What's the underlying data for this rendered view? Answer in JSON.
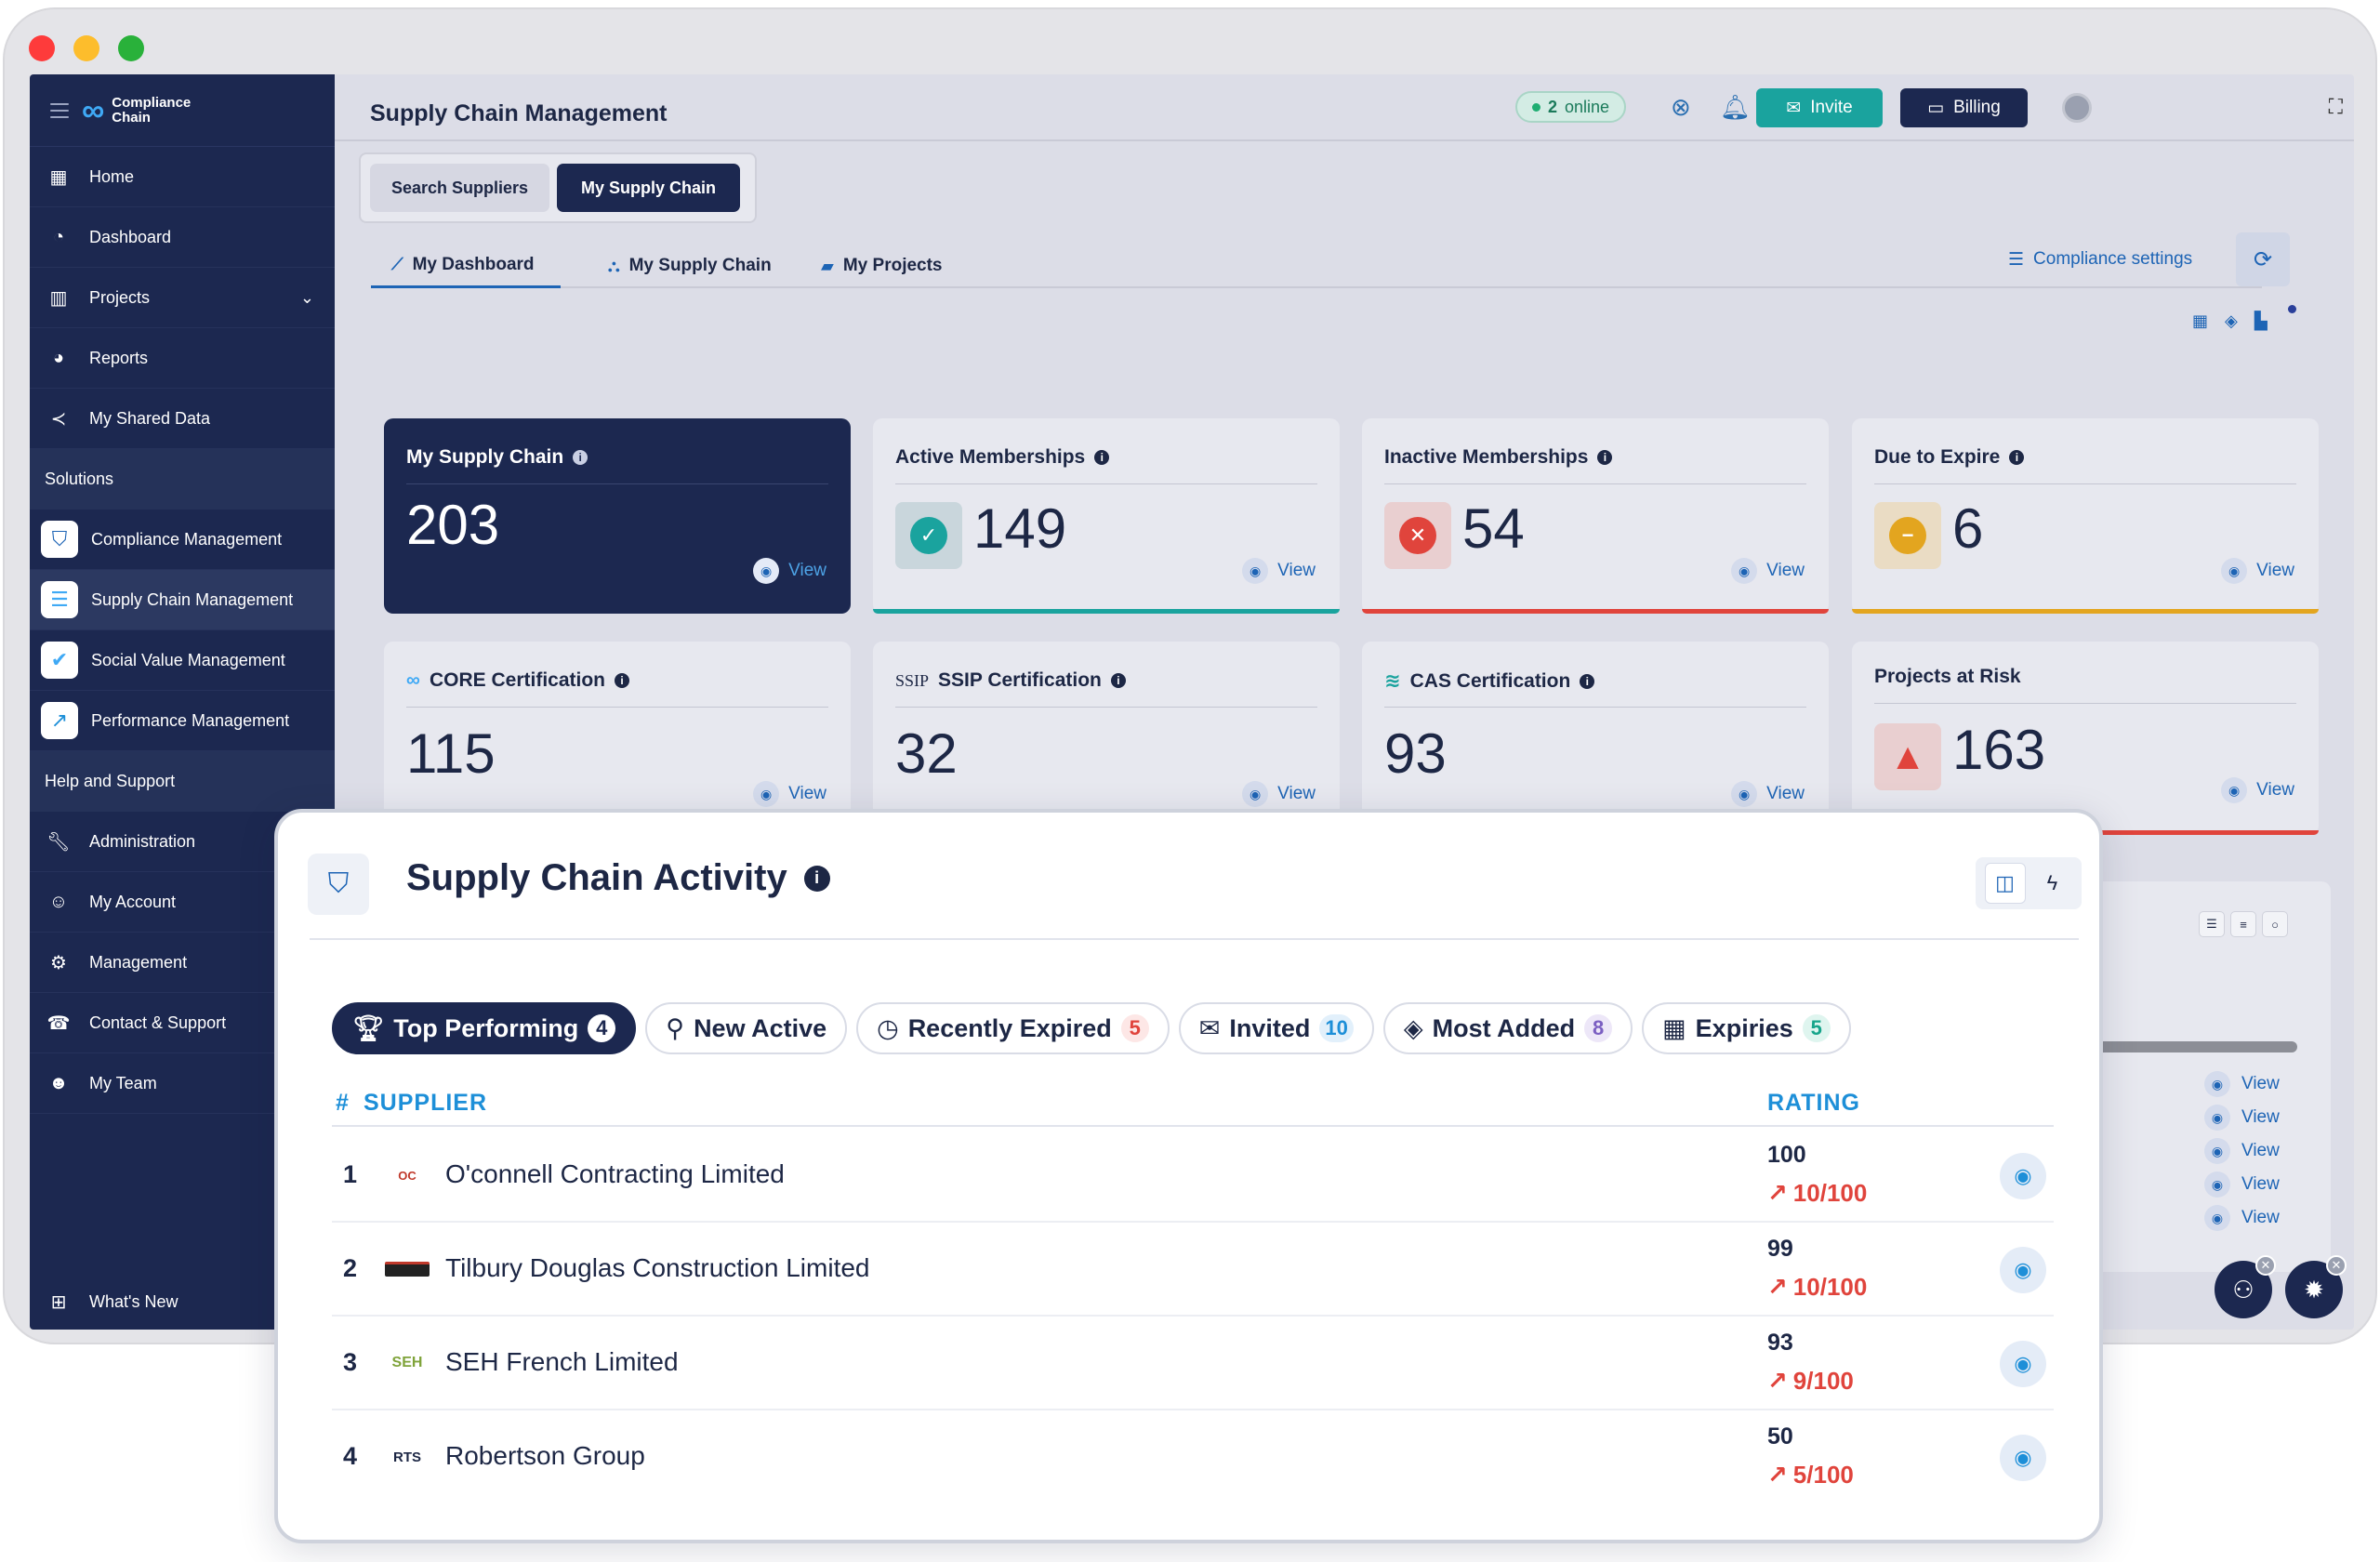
{
  "app": {
    "logo_line1": "Compliance",
    "logo_line2": "Chain"
  },
  "sidebar": {
    "items": [
      {
        "label": "Home",
        "icon": "grid-icon"
      },
      {
        "label": "Dashboard",
        "icon": "gauge-icon"
      },
      {
        "label": "Projects",
        "icon": "building-icon"
      },
      {
        "label": "Reports",
        "icon": "pie-chart-icon"
      },
      {
        "label": "My Shared Data",
        "icon": "share-icon"
      }
    ],
    "solutions_heading": "Solutions",
    "solutions": [
      {
        "label": "Compliance Management",
        "icon": "shield-icon"
      },
      {
        "label": "Supply Chain Management",
        "icon": "supply-chain-icon"
      },
      {
        "label": "Social Value Management",
        "icon": "heart-icon"
      },
      {
        "label": "Performance Management",
        "icon": "arrow-up-right-icon"
      }
    ],
    "help_heading": "Help and Support",
    "help": [
      {
        "label": "Administration",
        "icon": "wrench-icon"
      },
      {
        "label": "My Account",
        "icon": "user-gear-icon"
      },
      {
        "label": "Management",
        "icon": "gear-icon"
      },
      {
        "label": "Contact & Support",
        "icon": "phone-icon"
      },
      {
        "label": "My Team",
        "icon": "users-icon"
      }
    ],
    "bottom_label": "What's New"
  },
  "topbar": {
    "online_count": "2",
    "online_label": "online",
    "invite_label": "Invite",
    "billing_label": "Billing"
  },
  "page": {
    "title": "Supply Chain Management",
    "segment": [
      "Search Suppliers",
      "My Supply Chain"
    ],
    "subtabs": [
      "My Dashboard",
      "My Supply Chain",
      "My Projects"
    ],
    "compliance_settings": "Compliance settings"
  },
  "cards": [
    {
      "title": "My Supply Chain",
      "value": "203",
      "view": "View"
    },
    {
      "title": "Active Memberships",
      "value": "149",
      "view": "View"
    },
    {
      "title": "Inactive Memberships",
      "value": "54",
      "view": "View"
    },
    {
      "title": "Due to Expire",
      "value": "6",
      "view": "View"
    },
    {
      "title": "CORE Certification",
      "value": "115",
      "view": "View"
    },
    {
      "title": "SSIP Certification",
      "value": "32",
      "view": "View"
    },
    {
      "title": "CAS Certification",
      "value": "93",
      "view": "View"
    },
    {
      "title": "Projects at Risk",
      "value": "163",
      "view": "View"
    }
  ],
  "background_views": [
    "View",
    "View",
    "View",
    "View",
    "View"
  ],
  "activity": {
    "title": "Supply Chain Activity",
    "chips": [
      {
        "label": "Top Performing",
        "count": "4"
      },
      {
        "label": "New Active",
        "count": ""
      },
      {
        "label": "Recently Expired",
        "count": "5"
      },
      {
        "label": "Invited",
        "count": "10"
      },
      {
        "label": "Most Added",
        "count": "8"
      },
      {
        "label": "Expiries",
        "count": "5"
      }
    ],
    "columns": {
      "num": "#",
      "supplier": "SUPPLIER",
      "rating": "RATING"
    },
    "rows": [
      {
        "num": "1",
        "name": "O'connell Contracting Limited",
        "rating": "100",
        "score": "10/100"
      },
      {
        "num": "2",
        "name": "Tilbury Douglas Construction Limited",
        "rating": "99",
        "score": "10/100"
      },
      {
        "num": "3",
        "name": "SEH French Limited",
        "rating": "93",
        "score": "9/100"
      },
      {
        "num": "4",
        "name": "Robertson Group",
        "rating": "50",
        "score": "5/100"
      }
    ]
  },
  "colors": {
    "navy": "#1c2850",
    "teal": "#1aa39e",
    "red": "#e0443c",
    "amber": "#e3a51f",
    "blue": "#1d64b5"
  }
}
